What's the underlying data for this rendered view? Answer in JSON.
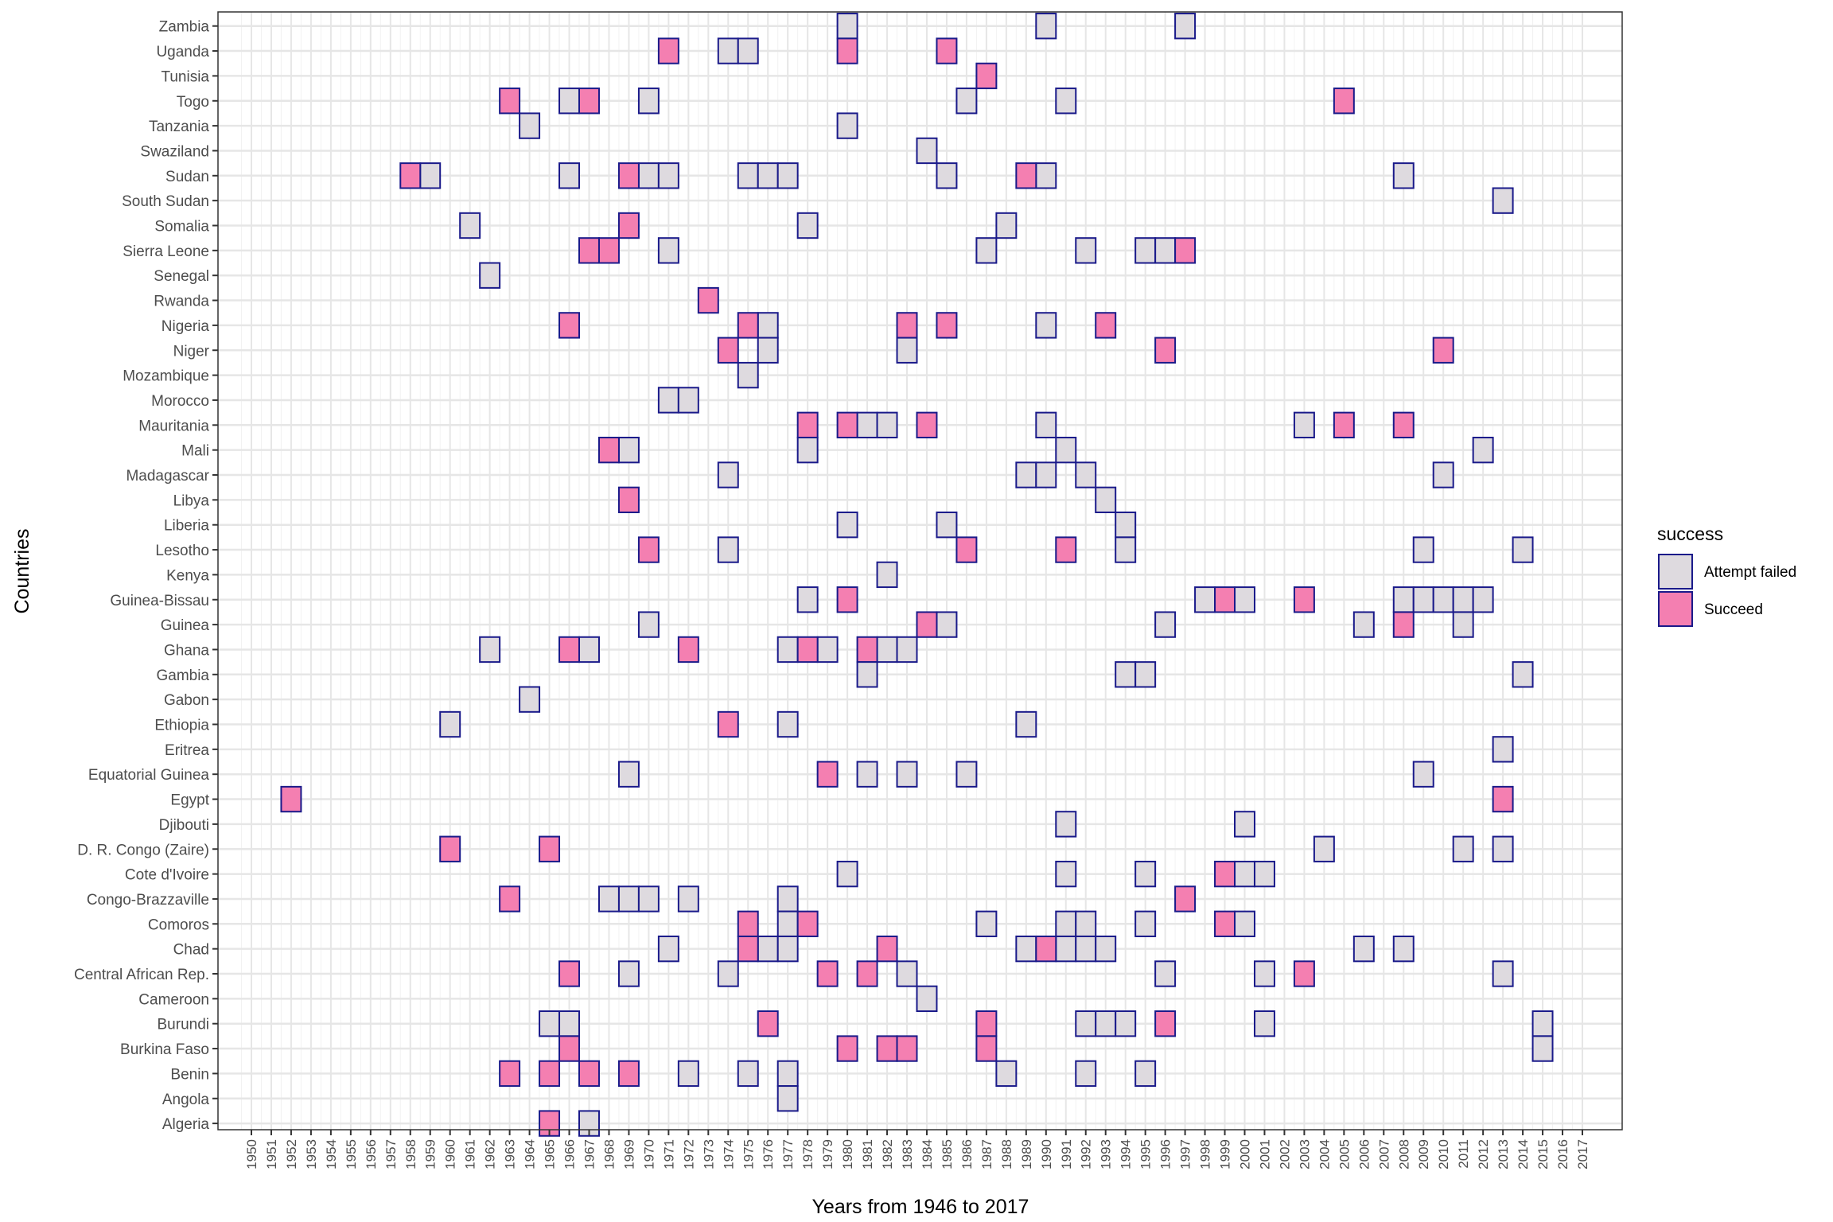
{
  "chart_data": {
    "type": "heatmap",
    "xlabel": "Years from 1946 to 2017",
    "ylabel": "Countries",
    "x_ticks": [
      1950,
      1951,
      1952,
      1953,
      1954,
      1955,
      1956,
      1957,
      1958,
      1959,
      1960,
      1961,
      1962,
      1963,
      1964,
      1965,
      1966,
      1967,
      1968,
      1969,
      1970,
      1971,
      1972,
      1973,
      1974,
      1975,
      1976,
      1977,
      1978,
      1979,
      1980,
      1981,
      1982,
      1983,
      1984,
      1985,
      1986,
      1987,
      1988,
      1989,
      1990,
      1991,
      1992,
      1993,
      1994,
      1995,
      1996,
      1997,
      1998,
      1999,
      2000,
      2001,
      2002,
      2003,
      2004,
      2005,
      2006,
      2007,
      2008,
      2009,
      2010,
      2011,
      2012,
      2013,
      2014,
      2015,
      2016,
      2017
    ],
    "grid": true,
    "legend": {
      "title": "success",
      "placement": "right",
      "entries": [
        {
          "label": "Attempt failed",
          "color": "#dedadf"
        },
        {
          "label": "Succeed",
          "color": "#f47fb1"
        }
      ]
    },
    "tile_border_color": "#1a1a8a",
    "countries": [
      {
        "name": "Zambia",
        "failed": [
          1980,
          1990,
          1997
        ],
        "succeed": []
      },
      {
        "name": "Uganda",
        "failed": [
          1974,
          1975
        ],
        "succeed": [
          1971,
          1980,
          1985
        ]
      },
      {
        "name": "Tunisia",
        "failed": [],
        "succeed": [
          1987
        ]
      },
      {
        "name": "Togo",
        "failed": [
          1966,
          1970,
          1986,
          1991
        ],
        "succeed": [
          1963,
          1967,
          2005
        ]
      },
      {
        "name": "Tanzania",
        "failed": [
          1964,
          1980
        ],
        "succeed": []
      },
      {
        "name": "Swaziland",
        "failed": [
          1984
        ],
        "succeed": []
      },
      {
        "name": "Sudan",
        "failed": [
          1959,
          1966,
          1970,
          1971,
          1975,
          1976,
          1977,
          1985,
          1990,
          2008
        ],
        "succeed": [
          1958,
          1969,
          1989
        ]
      },
      {
        "name": "South Sudan",
        "failed": [
          2013
        ],
        "succeed": []
      },
      {
        "name": "Somalia",
        "failed": [
          1961,
          1978,
          1988
        ],
        "succeed": [
          1969
        ]
      },
      {
        "name": "Sierra Leone",
        "failed": [
          1971,
          1987,
          1992,
          1995,
          1996
        ],
        "succeed": [
          1967,
          1968,
          1997
        ]
      },
      {
        "name": "Senegal",
        "failed": [
          1962
        ],
        "succeed": []
      },
      {
        "name": "Rwanda",
        "failed": [],
        "succeed": [
          1973
        ]
      },
      {
        "name": "Nigeria",
        "failed": [
          1976,
          1990
        ],
        "succeed": [
          1966,
          1975,
          1983,
          1985,
          1993
        ]
      },
      {
        "name": "Niger",
        "failed": [
          1976,
          1983
        ],
        "succeed": [
          1974,
          1996,
          2010
        ]
      },
      {
        "name": "Mozambique",
        "failed": [
          1975
        ],
        "succeed": []
      },
      {
        "name": "Morocco",
        "failed": [
          1971,
          1972
        ],
        "succeed": []
      },
      {
        "name": "Mauritania",
        "failed": [
          1981,
          1982,
          1990,
          2003
        ],
        "succeed": [
          1978,
          1980,
          1984,
          2005,
          2008
        ]
      },
      {
        "name": "Mali",
        "failed": [
          1969,
          1978,
          1991,
          2012
        ],
        "succeed": [
          1968
        ]
      },
      {
        "name": "Madagascar",
        "failed": [
          1974,
          1989,
          1990,
          1992,
          2010
        ],
        "succeed": []
      },
      {
        "name": "Libya",
        "failed": [
          1993
        ],
        "succeed": [
          1969
        ]
      },
      {
        "name": "Liberia",
        "failed": [
          1980,
          1985,
          1994
        ],
        "succeed": []
      },
      {
        "name": "Lesotho",
        "failed": [
          1974,
          1994,
          2009,
          2014
        ],
        "succeed": [
          1970,
          1986,
          1991
        ]
      },
      {
        "name": "Kenya",
        "failed": [
          1982
        ],
        "succeed": []
      },
      {
        "name": "Guinea-Bissau",
        "failed": [
          1978,
          1998,
          2000,
          2008,
          2009,
          2010,
          2011,
          2012
        ],
        "succeed": [
          1980,
          1999,
          2003
        ]
      },
      {
        "name": "Guinea",
        "failed": [
          1970,
          1985,
          1996,
          2006,
          2011
        ],
        "succeed": [
          1984,
          2008
        ]
      },
      {
        "name": "Ghana",
        "failed": [
          1962,
          1967,
          1977,
          1979,
          1982,
          1983
        ],
        "succeed": [
          1966,
          1972,
          1978,
          1981
        ]
      },
      {
        "name": "Gambia",
        "failed": [
          1981,
          1994,
          1995,
          2014
        ],
        "succeed": []
      },
      {
        "name": "Gabon",
        "failed": [
          1964
        ],
        "succeed": []
      },
      {
        "name": "Ethiopia",
        "failed": [
          1960,
          1977,
          1989
        ],
        "succeed": [
          1974
        ]
      },
      {
        "name": "Eritrea",
        "failed": [
          2013
        ],
        "succeed": []
      },
      {
        "name": "Equatorial Guinea",
        "failed": [
          1969,
          1981,
          1983,
          1986,
          2009
        ],
        "succeed": [
          1979
        ]
      },
      {
        "name": "Egypt",
        "failed": [],
        "succeed": [
          1952,
          2013
        ]
      },
      {
        "name": "Djibouti",
        "failed": [
          1991,
          2000
        ],
        "succeed": []
      },
      {
        "name": "D. R. Congo (Zaire)",
        "failed": [
          2004,
          2011,
          2013
        ],
        "succeed": [
          1960,
          1965
        ]
      },
      {
        "name": "Cote d'Ivoire",
        "failed": [
          1980,
          1991,
          1995,
          2000,
          2001
        ],
        "succeed": [
          1999
        ]
      },
      {
        "name": "Congo-Brazzaville",
        "failed": [
          1968,
          1969,
          1970,
          1972,
          1977
        ],
        "succeed": [
          1963,
          1997
        ]
      },
      {
        "name": "Comoros",
        "failed": [
          1977,
          1987,
          1991,
          1992,
          1995,
          2000
        ],
        "succeed": [
          1975,
          1978,
          1999
        ]
      },
      {
        "name": "Chad",
        "failed": [
          1971,
          1976,
          1977,
          1989,
          1991,
          1992,
          1993,
          2006,
          2008
        ],
        "succeed": [
          1975,
          1982,
          1990
        ]
      },
      {
        "name": "Central African Rep.",
        "failed": [
          1969,
          1974,
          1983,
          1996,
          2001,
          2013
        ],
        "succeed": [
          1966,
          1979,
          1981,
          2003
        ]
      },
      {
        "name": "Cameroon",
        "failed": [
          1984
        ],
        "succeed": []
      },
      {
        "name": "Burundi",
        "failed": [
          1965,
          1966,
          1992,
          1993,
          1994,
          2001,
          2015
        ],
        "succeed": [
          1976,
          1987,
          1996
        ]
      },
      {
        "name": "Burkina Faso",
        "failed": [
          2015
        ],
        "succeed": [
          1966,
          1980,
          1982,
          1983,
          1987
        ]
      },
      {
        "name": "Benin",
        "failed": [
          1972,
          1975,
          1977,
          1988,
          1992,
          1995
        ],
        "succeed": [
          1963,
          1965,
          1967,
          1969
        ]
      },
      {
        "name": "Angola",
        "failed": [
          1977
        ],
        "succeed": []
      },
      {
        "name": "Algeria",
        "failed": [
          1967
        ],
        "succeed": [
          1965
        ]
      }
    ]
  }
}
